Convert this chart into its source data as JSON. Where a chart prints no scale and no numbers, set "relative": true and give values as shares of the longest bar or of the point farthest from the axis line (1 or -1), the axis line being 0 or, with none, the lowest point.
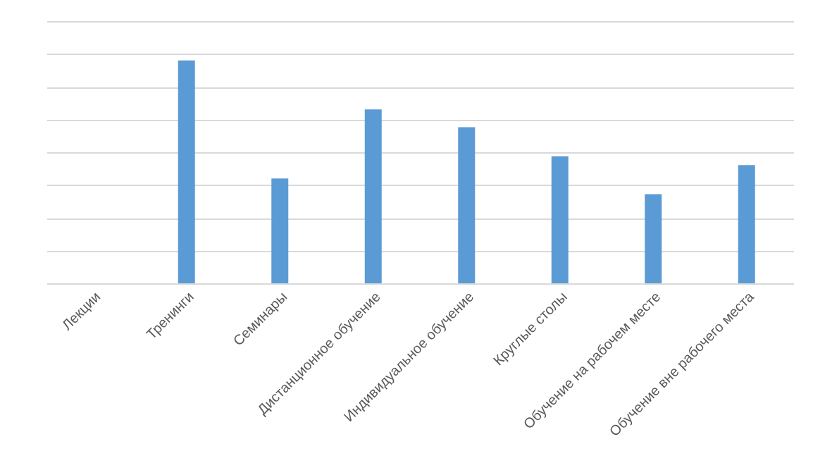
{
  "chart_data": {
    "type": "bar",
    "relative": true,
    "grid": "y",
    "color": "#5b9bd5",
    "categories": [
      "Лекции",
      "Тренинги",
      "Семинары",
      "Дистанционное обучение",
      "Индивидуальное обучение",
      "Круглые столы",
      "Обучение на рабочем месте",
      "Обучение вне рабочего места"
    ],
    "values": [
      0,
      1,
      0.47,
      0.78,
      0.7,
      0.57,
      0.4,
      0.53
    ]
  }
}
